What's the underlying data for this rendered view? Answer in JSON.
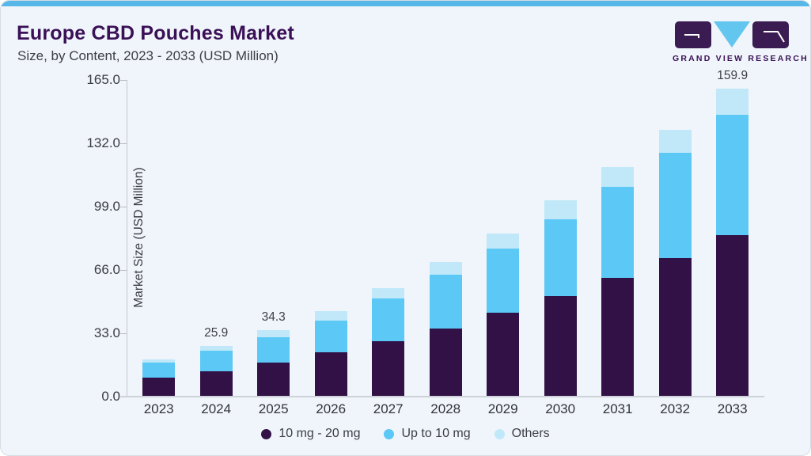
{
  "header": {
    "title": "Europe CBD Pouches Market",
    "subtitle": "Size, by Content, 2023 - 2033 (USD Million)"
  },
  "logo": {
    "brand": "GRAND VIEW RESEARCH",
    "box_color": "#3a1c52",
    "triangle_color": "#62c6ee"
  },
  "chart_data": {
    "type": "bar",
    "stacked": true,
    "categories": [
      "2023",
      "2024",
      "2025",
      "2026",
      "2027",
      "2028",
      "2029",
      "2030",
      "2031",
      "2032",
      "2033"
    ],
    "series": [
      {
        "name": "10 mg - 20 mg",
        "color": "#321146",
        "values": [
          9.4,
          12.9,
          17.2,
          22.5,
          28.5,
          35.2,
          43.3,
          51.9,
          61.6,
          71.9,
          83.7
        ]
      },
      {
        "name": "Up to 10 mg",
        "color": "#5bc8f5",
        "values": [
          7.8,
          10.5,
          13.4,
          16.9,
          22.3,
          27.8,
          33.5,
          40.2,
          47.2,
          54.6,
          62.7
        ]
      },
      {
        "name": "Others",
        "color": "#c0e8f9",
        "values": [
          1.8,
          2.5,
          3.7,
          4.9,
          5.4,
          6.8,
          7.7,
          9.6,
          10.3,
          12.1,
          13.5
        ]
      }
    ],
    "bar_total_labels": [
      "",
      "25.9",
      "34.3",
      "",
      "",
      "",
      "",
      "",
      "",
      "",
      "159.9"
    ],
    "ylabel": "Market Size (USD Million)",
    "yticks": [
      "165.0",
      "132.0",
      "99.0",
      "66.0",
      "33.0",
      "0.0"
    ],
    "ylim": [
      0,
      165
    ],
    "grid": false,
    "legend_position": "bottom"
  }
}
